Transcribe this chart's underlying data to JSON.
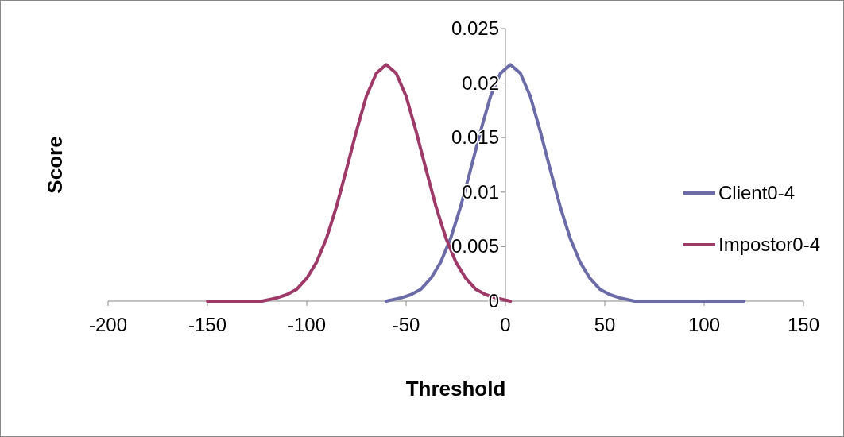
{
  "chart_data": {
    "type": "line",
    "xlabel": "Threshold",
    "ylabel": "Score",
    "xlim": [
      -200,
      150
    ],
    "xticks": [
      -200,
      -150,
      -100,
      -50,
      0,
      50,
      100,
      150
    ],
    "ylim": [
      0,
      0.025
    ],
    "yticks": [
      0,
      0.005,
      0.01,
      0.015,
      0.02,
      0.025
    ],
    "grid": false,
    "legend": "right",
    "marker": "none",
    "line_style": "solid",
    "series": [
      {
        "name": "Client0-4",
        "color": "#6b6ba8",
        "x": [
          -60,
          -52.5,
          -47.5,
          -42.5,
          -37.5,
          -32.5,
          -27.5,
          -22.5,
          -17.5,
          -12.5,
          -7.5,
          -2.5,
          2.5,
          7.5,
          12.5,
          17.5,
          22.5,
          27.5,
          32.5,
          37.5,
          42.5,
          47.5,
          52.5,
          57.5,
          65,
          120
        ],
        "values": [
          0,
          0.0003,
          0.0006,
          0.0011,
          0.0021,
          0.0036,
          0.0058,
          0.0087,
          0.0121,
          0.0156,
          0.0188,
          0.0209,
          0.0217,
          0.0209,
          0.0188,
          0.0156,
          0.0121,
          0.0087,
          0.0058,
          0.0036,
          0.0021,
          0.0011,
          0.0006,
          0.0003,
          0,
          0
        ]
      },
      {
        "name": "Impostor0-4",
        "color": "#9e3a68",
        "x": [
          -150,
          -122.5,
          -115,
          -110,
          -105,
          -100,
          -95,
          -90,
          -85,
          -80,
          -75,
          -70,
          -65,
          -60,
          -55,
          -50,
          -45,
          -40,
          -35,
          -30,
          -25,
          -20,
          -15,
          -10,
          -5,
          2.5
        ],
        "values": [
          0,
          0,
          0.0003,
          0.0006,
          0.0011,
          0.0021,
          0.0036,
          0.0058,
          0.0087,
          0.0121,
          0.0156,
          0.0188,
          0.0209,
          0.0217,
          0.0209,
          0.0188,
          0.0156,
          0.0121,
          0.0087,
          0.0058,
          0.0036,
          0.0021,
          0.0011,
          0.0006,
          0.0003,
          0
        ]
      }
    ]
  }
}
